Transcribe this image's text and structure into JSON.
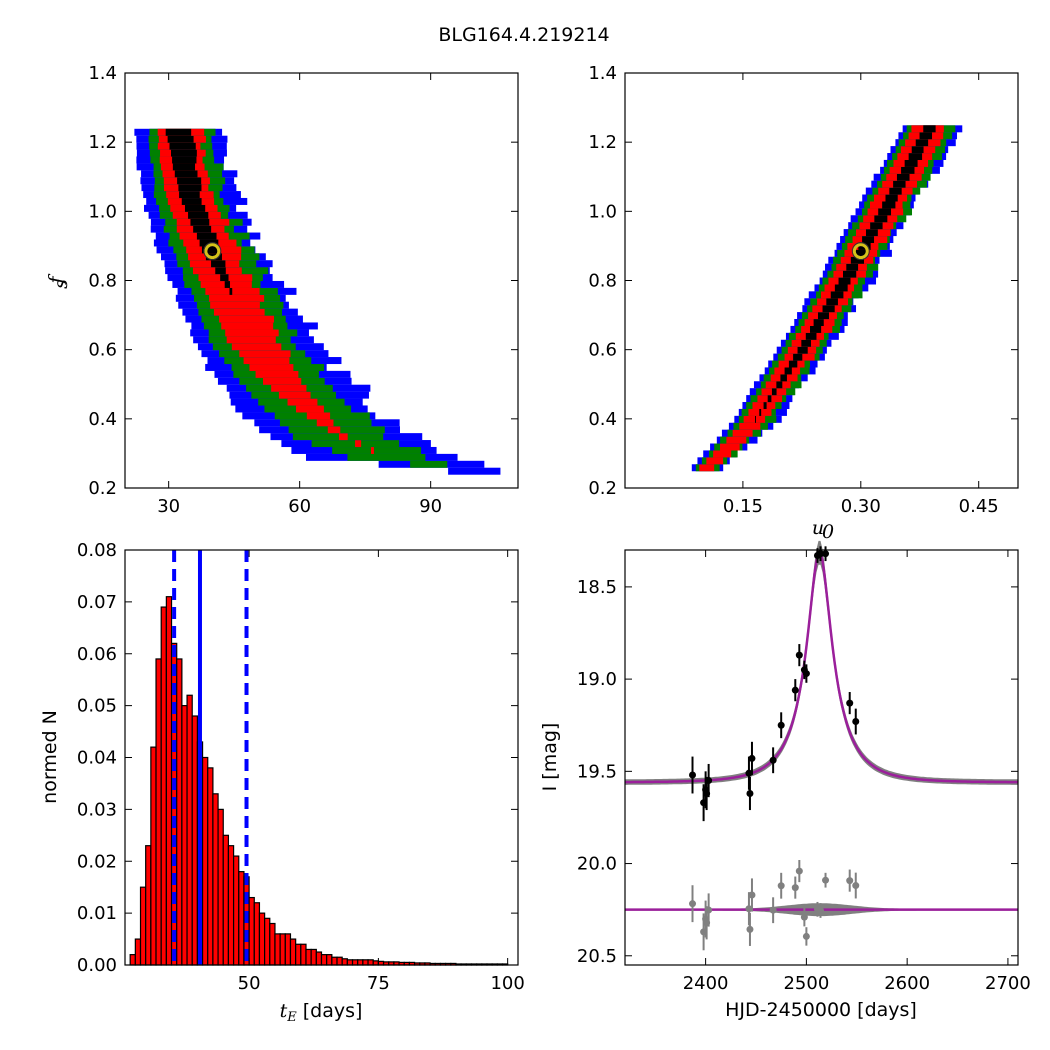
{
  "figure": {
    "title": "BLG164.4.219214"
  },
  "chart_data": [
    {
      "id": "panel-fs-vs-tE",
      "type": "heatmap",
      "title": "",
      "xlabel": "",
      "ylabel": "f_s",
      "xlim": [
        20,
        110
      ],
      "ylim": [
        0.2,
        1.4
      ],
      "xticks": [
        30,
        60,
        90
      ],
      "yticks": [
        "0.2",
        "0.4",
        "0.6",
        "0.8",
        "1.0",
        "1.2",
        "1.4"
      ],
      "legend": "none",
      "grid": false,
      "colors": {
        "inner": "#000000",
        "sigma1": "#ff0000",
        "sigma2": "#008000",
        "sigma3": "#0000ff",
        "best_fit_marker": "#d4c21a"
      },
      "best_fit": {
        "x": 40,
        "y": 0.885
      },
      "ridge": [
        {
          "x": 32,
          "y": 1.25,
          "w_inner": 3,
          "w1": 5,
          "w2": 7,
          "w3": 10
        },
        {
          "x": 35,
          "y": 1.05,
          "w_inner": 2.5,
          "w1": 5.5,
          "w2": 8,
          "w3": 11
        },
        {
          "x": 40,
          "y": 0.88,
          "w_inner": 2,
          "w1": 6,
          "w2": 9,
          "w3": 12
        },
        {
          "x": 45,
          "y": 0.75,
          "w_inner": 0,
          "w1": 6,
          "w2": 9.5,
          "w3": 13
        },
        {
          "x": 50,
          "y": 0.62,
          "w_inner": 0,
          "w1": 6,
          "w2": 10,
          "w3": 14
        },
        {
          "x": 55,
          "y": 0.53,
          "w_inner": 0,
          "w1": 5,
          "w2": 10,
          "w3": 15
        },
        {
          "x": 62,
          "y": 0.43,
          "w_inner": 0,
          "w1": 3,
          "w2": 10,
          "w3": 16
        },
        {
          "x": 70,
          "y": 0.35,
          "w_inner": 0,
          "w1": 1,
          "w2": 11,
          "w3": 17
        },
        {
          "x": 80,
          "y": 0.29,
          "w_inner": 0,
          "w1": 0,
          "w2": 9,
          "w3": 18
        },
        {
          "x": 100,
          "y": 0.25,
          "w_inner": 0,
          "w1": 0,
          "w2": 0,
          "w3": 6
        }
      ]
    },
    {
      "id": "panel-fs-vs-u0",
      "type": "heatmap",
      "title": "",
      "xlabel": "u_0",
      "ylabel": "",
      "xlim": [
        0.0,
        0.5
      ],
      "ylim": [
        0.2,
        1.4
      ],
      "xticks": [
        "0.15",
        "0.30",
        "0.45"
      ],
      "yticks": [
        "0.2",
        "0.4",
        "0.6",
        "0.8",
        "1.0",
        "1.2",
        "1.4"
      ],
      "legend": "none",
      "grid": false,
      "best_fit": {
        "x": 0.3,
        "y": 0.885
      },
      "ridge": [
        {
          "x": 0.105,
          "y": 0.26,
          "w_inner": 0,
          "w1": 0.01,
          "w2": 0.015,
          "w3": 0.02
        },
        {
          "x": 0.16,
          "y": 0.38,
          "w_inner": 0,
          "w1": 0.014,
          "w2": 0.022,
          "w3": 0.028
        },
        {
          "x": 0.22,
          "y": 0.58,
          "w_inner": 0.006,
          "w1": 0.018,
          "w2": 0.026,
          "w3": 0.032
        },
        {
          "x": 0.28,
          "y": 0.8,
          "w_inner": 0.008,
          "w1": 0.02,
          "w2": 0.028,
          "w3": 0.034
        },
        {
          "x": 0.33,
          "y": 1.0,
          "w_inner": 0.008,
          "w1": 0.022,
          "w2": 0.03,
          "w3": 0.036
        },
        {
          "x": 0.39,
          "y": 1.25,
          "w_inner": 0.008,
          "w1": 0.022,
          "w2": 0.03,
          "w3": 0.036
        }
      ]
    },
    {
      "id": "panel-tE-hist",
      "type": "bar",
      "title": "",
      "xlabel": "t_E [days]",
      "ylabel": "normed N",
      "xlim": [
        26,
        102
      ],
      "ylim": [
        0.0,
        0.08
      ],
      "xticks": [
        50,
        75,
        100
      ],
      "yticks": [
        "0.00",
        "0.01",
        "0.02",
        "0.03",
        "0.04",
        "0.05",
        "0.06",
        "0.07",
        "0.08"
      ],
      "bin_width": 1,
      "bin_start": 27,
      "values": [
        0.002,
        0.005,
        0.015,
        0.023,
        0.042,
        0.059,
        0.069,
        0.071,
        0.062,
        0.059,
        0.05,
        0.052,
        0.048,
        0.043,
        0.04,
        0.038,
        0.033,
        0.03,
        0.025,
        0.023,
        0.021,
        0.018,
        0.017,
        0.013,
        0.012,
        0.01,
        0.009,
        0.008,
        0.006,
        0.006,
        0.006,
        0.005,
        0.004,
        0.004,
        0.003,
        0.003,
        0.0025,
        0.002,
        0.002,
        0.0015,
        0.0015,
        0.0012,
        0.001,
        0.001,
        0.001,
        0.001,
        0.001,
        0.0008,
        0.0007,
        0.0006,
        0.0006,
        0.0006,
        0.0005,
        0.0005,
        0.0005,
        0.0004,
        0.0004,
        0.0004,
        0.0003,
        0.0003,
        0.0003,
        0.0003,
        0.0003,
        0.0002,
        0.0002,
        0.0002,
        0.0002,
        0.0002,
        0.0002,
        0.0002,
        0.0002,
        0.0002,
        0.0002
      ],
      "bar_color": "#ff0000",
      "median_line": 40.5,
      "interval_lines": [
        35.5,
        49.5
      ],
      "line_color": "#0000ff",
      "legend": "none",
      "grid": false
    },
    {
      "id": "panel-lightcurve",
      "type": "scatter",
      "title": "",
      "xlabel": "HJD-2450000 [days]",
      "ylabel": "I [mag]",
      "xlim": [
        2320,
        2710
      ],
      "ylim": [
        20.55,
        18.3
      ],
      "xticks": [
        2400,
        2500,
        2600,
        2700
      ],
      "yticks": [
        "18.5",
        "19.0",
        "19.5",
        "20.0",
        "20.5"
      ],
      "model": {
        "baseline": 19.56,
        "peak": 18.31,
        "t0": 2513,
        "tE": 40.5,
        "u0": 0.3
      },
      "model_color": "#9b1f9b",
      "band_color": "#808080",
      "residual_offset": 20.25,
      "points": [
        {
          "t": 2387,
          "mag": 19.52,
          "err": 0.1
        },
        {
          "t": 2398,
          "mag": 19.67,
          "err": 0.1
        },
        {
          "t": 2400,
          "mag": 19.6,
          "err": 0.1
        },
        {
          "t": 2401,
          "mag": 19.62,
          "err": 0.09
        },
        {
          "t": 2403,
          "mag": 19.55,
          "err": 0.09
        },
        {
          "t": 2443,
          "mag": 19.51,
          "err": 0.09
        },
        {
          "t": 2444,
          "mag": 19.62,
          "err": 0.09
        },
        {
          "t": 2446,
          "mag": 19.43,
          "err": 0.09
        },
        {
          "t": 2467,
          "mag": 19.44,
          "err": 0.07
        },
        {
          "t": 2475,
          "mag": 19.25,
          "err": 0.07
        },
        {
          "t": 2489,
          "mag": 19.06,
          "err": 0.06
        },
        {
          "t": 2493,
          "mag": 18.87,
          "err": 0.06
        },
        {
          "t": 2498,
          "mag": 18.95,
          "err": 0.05
        },
        {
          "t": 2500,
          "mag": 18.97,
          "err": 0.05
        },
        {
          "t": 2511,
          "mag": 18.33,
          "err": 0.04
        },
        {
          "t": 2514,
          "mag": 18.32,
          "err": 0.04
        },
        {
          "t": 2519,
          "mag": 18.32,
          "err": 0.04
        },
        {
          "t": 2543,
          "mag": 19.13,
          "err": 0.06
        },
        {
          "t": 2549,
          "mag": 19.23,
          "err": 0.07
        }
      ],
      "point_color": "#000000",
      "residual_color": "#808080",
      "legend": "none",
      "grid": false
    }
  ]
}
